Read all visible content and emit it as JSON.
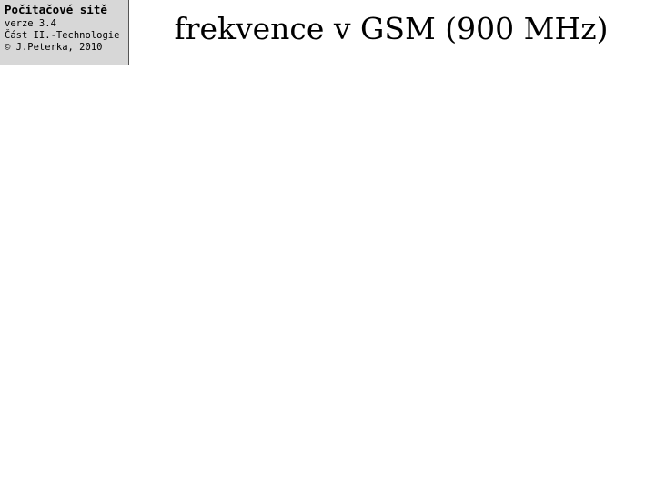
{
  "header": {
    "course": "Počítačové sítě",
    "version": "verze 3.4",
    "part": "Část II.-Technologie",
    "copyright": "© J.Peterka, 2010"
  },
  "title": "frekvence v GSM (900 MHz)",
  "bullets": [],
  "spectrum": {
    "title": "",
    "rows": [],
    "legend": []
  },
  "tdma": {
    "cells": []
  },
  "footer": {
    "lecture": "",
    "slide": ""
  }
}
